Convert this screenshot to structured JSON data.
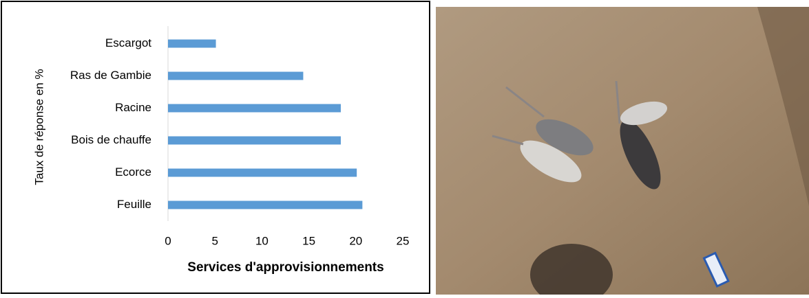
{
  "chart_data": {
    "type": "barh",
    "x_label": "Services d'approvisionnements",
    "y_label": "Taux de réponse en %",
    "categories": [
      "Escargot",
      "Ras de Gambie",
      "Racine",
      "Bois de chauffe",
      "Ecorce",
      "Feuille"
    ],
    "values": [
      5.1,
      14.4,
      18.4,
      18.4,
      20.1,
      20.7
    ],
    "color": "#5b9bd5",
    "xlim": [
      0,
      25
    ],
    "xticks": [
      0,
      5,
      10,
      15,
      20,
      25
    ]
  }
}
